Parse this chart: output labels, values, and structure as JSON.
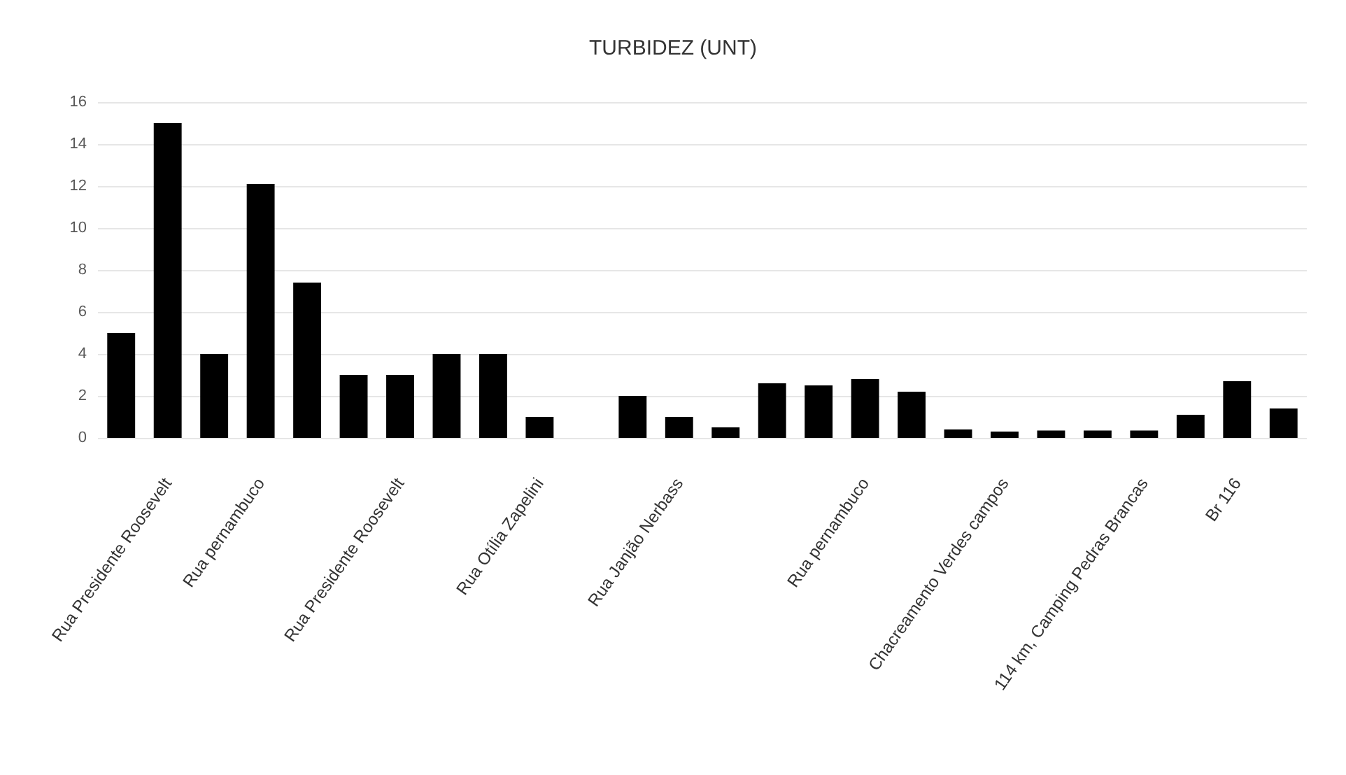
{
  "chart_data": {
    "type": "bar",
    "title": "TURBIDEZ (UNT)",
    "categories": [
      null,
      "Rua Presidente Roosevelt",
      null,
      "Rua pernambuco",
      null,
      null,
      "Rua Presidente Roosevelt",
      null,
      null,
      "Rua Otília Zapelini",
      null,
      null,
      "Rua Janjão Nerbass",
      null,
      null,
      null,
      "Rua pernambuco",
      null,
      null,
      "Chacreamento Verdes campos",
      null,
      null,
      "114 km, Camping Pedras Brancas",
      null,
      "Br 116",
      null
    ],
    "values": [
      5,
      15,
      4,
      12.1,
      7.4,
      3,
      3,
      4,
      4,
      1,
      null,
      2,
      1,
      0.5,
      2.6,
      2.5,
      2.8,
      2.2,
      0.4,
      0.3,
      0.35,
      0.35,
      0.35,
      1.1,
      2.7,
      1.4
    ],
    "color": "#000000",
    "ylim": [
      0,
      16
    ],
    "yticks": [
      0,
      2,
      4,
      6,
      8,
      10,
      12,
      14,
      16
    ],
    "grid": "y"
  }
}
